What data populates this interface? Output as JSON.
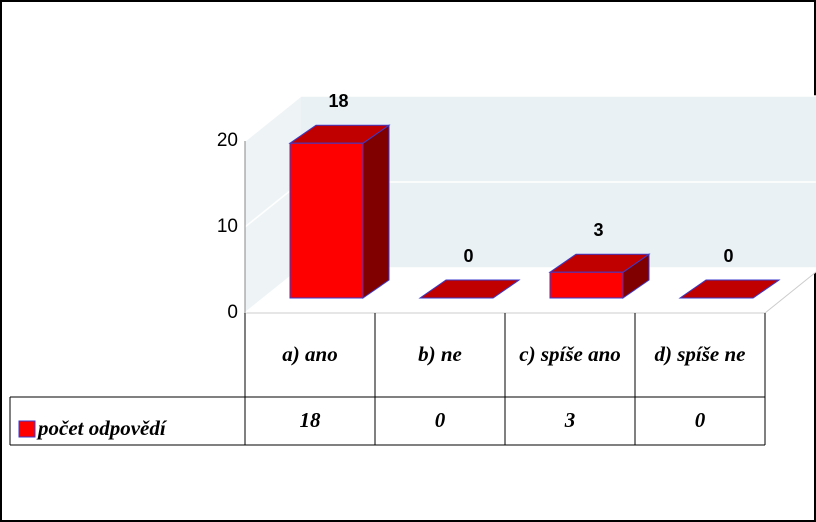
{
  "chart_data": {
    "type": "bar3d",
    "categories": [
      "a) ano",
      "b) ne",
      "c) spíše ano",
      "d) spíše ne"
    ],
    "series": [
      {
        "name": "počet odpovědí",
        "color": "#ff0000",
        "values": [
          18,
          0,
          3,
          0
        ]
      }
    ],
    "ylim": [
      0,
      20
    ],
    "yticks": [
      0,
      10,
      20
    ],
    "grid": true,
    "data_table": true
  }
}
